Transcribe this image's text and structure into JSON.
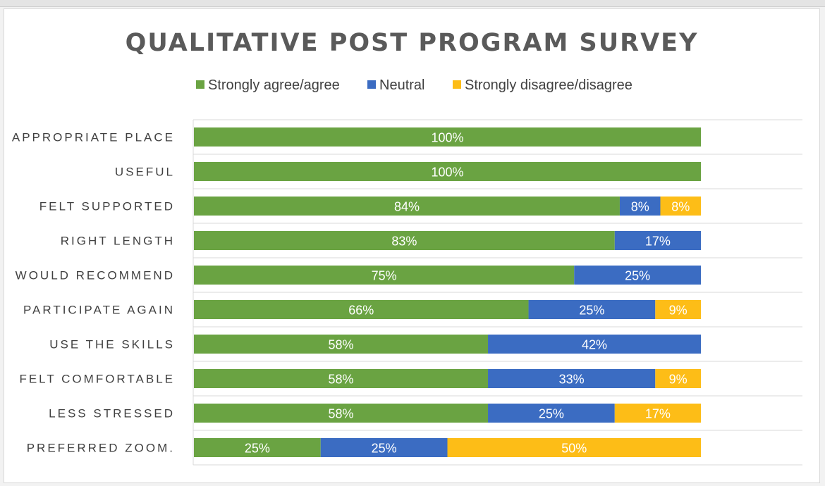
{
  "chart_data": {
    "type": "bar",
    "orientation": "horizontal",
    "stacked": true,
    "title": "QUALITATIVE POST PROGRAM SURVEY",
    "legend": [
      {
        "name": "Strongly agree/agree",
        "color": "#6aa342"
      },
      {
        "name": "Neutral",
        "color": "#3b6cc2"
      },
      {
        "name": "Strongly disagree/disagree",
        "color": "#fdbd17"
      }
    ],
    "legend_position": "top",
    "categories": [
      "APPROPRIATE PLACE",
      "USEFUL",
      "FELT SUPPORTED",
      "RIGHT LENGTH",
      "WOULD RECOMMEND",
      "PARTICIPATE AGAIN",
      "USE THE SKILLS",
      "FELT COMFORTABLE",
      "LESS STRESSED",
      "PREFERRED ZOOM."
    ],
    "series": [
      {
        "name": "Strongly agree/agree",
        "values": [
          100,
          100,
          84,
          83,
          75,
          66,
          58,
          58,
          58,
          25
        ]
      },
      {
        "name": "Neutral",
        "values": [
          0,
          0,
          8,
          17,
          25,
          25,
          42,
          33,
          25,
          25
        ]
      },
      {
        "name": "Strongly disagree/disagree",
        "values": [
          0,
          0,
          8,
          0,
          0,
          9,
          0,
          9,
          17,
          50
        ]
      }
    ],
    "value_suffix": "%",
    "xlim": [
      0,
      100
    ],
    "xlabel": "",
    "ylabel": "",
    "grid": "horizontal"
  }
}
